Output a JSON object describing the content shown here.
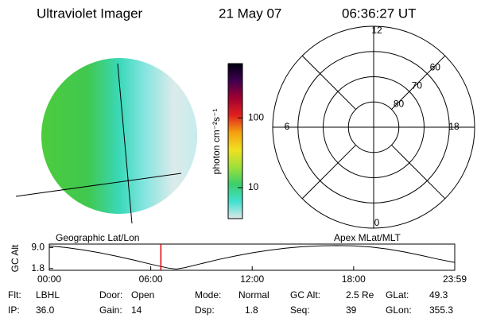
{
  "header": {
    "title": "Ultraviolet Imager",
    "date": "21 May 07",
    "time": "06:36:27 UT"
  },
  "image_labels": {
    "left": "Geographic Lat/Lon",
    "right": "Apex MLat/MLT"
  },
  "colorbar": {
    "label": "photon cm⁻²s⁻¹",
    "log": true,
    "ylim": [
      3.6,
      600
    ],
    "yticks": [
      10,
      100
    ],
    "colors": [
      "#dde8e8",
      "#40e0d0",
      "#3ccf6a",
      "#9fe03a",
      "#f0e020",
      "#f5a010",
      "#e02020",
      "#a00030",
      "#400050",
      "#000010"
    ]
  },
  "polar": {
    "mlt_labels": [
      12,
      18,
      6,
      0
    ],
    "lat_labels": [
      60,
      70,
      80
    ],
    "lat_min": 50
  },
  "altitude": {
    "type": "line",
    "y_label": "GC Alt",
    "color": "#000000",
    "marker_color": "#dd0000",
    "marker": 6.6,
    "x": [
      0,
      1,
      2,
      3,
      4,
      5,
      6,
      7,
      7.5,
      8,
      9,
      10,
      11,
      12,
      13,
      14,
      15,
      16,
      17,
      18,
      19,
      20,
      21,
      22,
      23,
      23.98
    ],
    "values": [
      9.6,
      9.0,
      8.2,
      7.2,
      6.0,
      4.7,
      3.3,
      2.0,
      1.6,
      2.1,
      3.5,
      4.9,
      6.1,
      7.2,
      8.1,
      8.8,
      9.3,
      9.6,
      9.7,
      9.6,
      9.2,
      8.5,
      7.5,
      6.3,
      5.0,
      3.9
    ],
    "xlim": [
      0,
      23.98
    ],
    "ylim": [
      1.2,
      10.2
    ],
    "xticks": [
      {
        "value": 0,
        "label": "00:00"
      },
      {
        "value": 6,
        "label": "06:00"
      },
      {
        "value": 12,
        "label": "12:00"
      },
      {
        "value": 18,
        "label": "18:00"
      },
      {
        "value": 23.98,
        "label": "23:59"
      }
    ],
    "yticks": [
      {
        "value": 9,
        "label": "9.0"
      },
      1.8
    ]
  },
  "footer": [
    [
      {
        "key": "Flt:",
        "val": "LBHL"
      },
      {
        "key": "Door:",
        "val": "Open"
      },
      {
        "key": "Mode:",
        "val": "Normal"
      },
      {
        "key": "GC Alt:",
        "val": "2.5 Re"
      },
      {
        "key": "GLat:",
        "val": "49.3"
      }
    ],
    [
      {
        "key": "IP:",
        "val": "36.0"
      },
      {
        "key": "Gain:",
        "val": "14"
      },
      {
        "key": "Dsp:",
        "val": "1.8"
      },
      {
        "key": "Seq:",
        "val": "39"
      },
      {
        "key": "GLon:",
        "val": "355.3"
      }
    ]
  ]
}
